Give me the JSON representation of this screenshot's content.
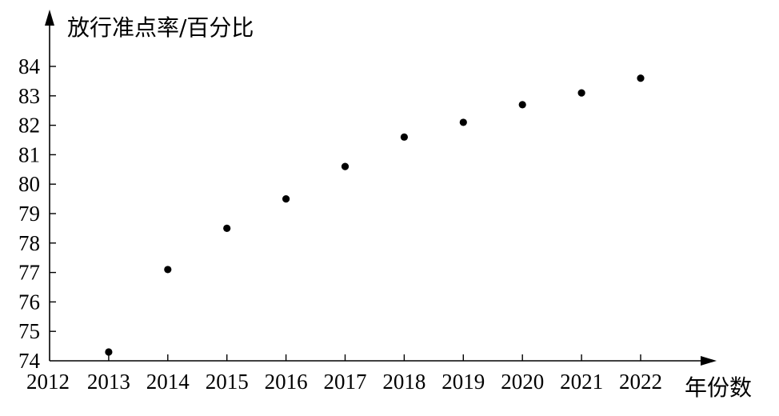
{
  "chart_data": {
    "type": "scatter",
    "title": "",
    "xlabel": "年份数",
    "ylabel": "放行准点率/百分比",
    "x_origin_label": "2012",
    "xlim": [
      2012,
      2022
    ],
    "ylim": [
      74,
      84
    ],
    "x_ticks": [
      2013,
      2014,
      2015,
      2016,
      2017,
      2018,
      2019,
      2020,
      2021,
      2022
    ],
    "y_ticks": [
      74,
      75,
      76,
      77,
      78,
      79,
      80,
      81,
      82,
      83,
      84
    ],
    "grid": false,
    "legend": "none",
    "series": [
      {
        "x": [
          2013,
          2014,
          2015,
          2016,
          2017,
          2018,
          2019,
          2020,
          2021,
          2022
        ],
        "y": [
          74.3,
          77.1,
          78.5,
          79.5,
          80.6,
          81.6,
          82.1,
          82.7,
          83.1,
          83.6
        ]
      }
    ]
  }
}
